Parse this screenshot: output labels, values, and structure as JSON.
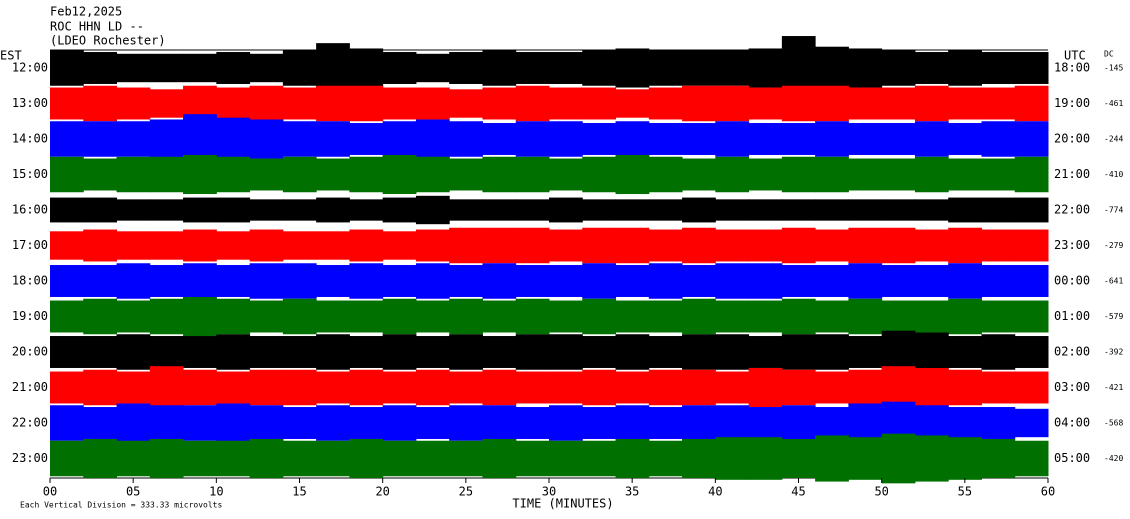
{
  "chart_data": {
    "type": "helicorder",
    "title": "Feb12,2025",
    "subtitle": "ROC HHN LD --",
    "station": "(LDEO Rochester)",
    "left_axis_label": "EST",
    "right_axis_label": "UTC",
    "dc_label": "DC",
    "x_label": "TIME (MINUTES)",
    "scale_note": "Each Vertical Division =  333.33 microvolts",
    "xlim": [
      0,
      60
    ],
    "xticks": [
      {
        "value": 0,
        "label": "00"
      },
      {
        "value": 5,
        "label": "05"
      },
      10,
      15,
      20,
      25,
      30,
      35,
      40,
      45,
      50,
      55,
      60
    ],
    "series": [
      {
        "name": "12:00",
        "utc": "18:00",
        "dc": -145,
        "color": "#000000",
        "values": [
          0.5,
          0.45,
          0.4,
          0.4,
          0.4,
          0.45,
          0.4,
          0.5,
          0.7,
          0.55,
          0.45,
          0.4,
          0.45,
          0.5,
          0.45,
          0.45,
          0.5,
          0.55,
          0.5,
          0.5,
          0.5,
          0.55,
          0.9,
          0.6,
          0.55,
          0.5,
          0.45,
          0.5,
          0.45,
          0.45
        ]
      },
      {
        "name": "13:00",
        "utc": "19:00",
        "dc": -461,
        "color": "#ff0000",
        "values": [
          0.45,
          0.5,
          0.45,
          0.4,
          0.5,
          0.45,
          0.5,
          0.45,
          0.5,
          0.5,
          0.45,
          0.45,
          0.4,
          0.45,
          0.5,
          0.45,
          0.45,
          0.4,
          0.45,
          0.5,
          0.5,
          0.45,
          0.5,
          0.5,
          0.45,
          0.45,
          0.5,
          0.45,
          0.45,
          0.5
        ]
      },
      {
        "name": "14:00",
        "utc": "20:00",
        "dc": -244,
        "color": "#0000ff",
        "values": [
          0.5,
          0.5,
          0.5,
          0.55,
          0.7,
          0.6,
          0.55,
          0.5,
          0.5,
          0.45,
          0.5,
          0.55,
          0.5,
          0.45,
          0.5,
          0.5,
          0.45,
          0.5,
          0.45,
          0.45,
          0.5,
          0.45,
          0.45,
          0.5,
          0.45,
          0.45,
          0.5,
          0.45,
          0.5,
          0.5
        ]
      },
      {
        "name": "15:00",
        "utc": "21:00",
        "dc": -410,
        "color": "#007000",
        "values": [
          0.5,
          0.45,
          0.5,
          0.5,
          0.55,
          0.5,
          0.45,
          0.5,
          0.45,
          0.5,
          0.55,
          0.5,
          0.45,
          0.5,
          0.5,
          0.45,
          0.5,
          0.55,
          0.5,
          0.45,
          0.5,
          0.45,
          0.5,
          0.5,
          0.45,
          0.45,
          0.5,
          0.45,
          0.45,
          0.5
        ]
      },
      {
        "name": "16:00",
        "utc": "22:00",
        "dc": -774,
        "color": "#000000",
        "values": [
          0.35,
          0.35,
          0.3,
          0.3,
          0.35,
          0.35,
          0.3,
          0.3,
          0.35,
          0.3,
          0.35,
          0.4,
          0.3,
          0.3,
          0.3,
          0.35,
          0.3,
          0.3,
          0.3,
          0.35,
          0.3,
          0.3,
          0.3,
          0.3,
          0.3,
          0.3,
          0.3,
          0.35,
          0.35,
          0.35
        ]
      },
      {
        "name": "17:00",
        "utc": "23:00",
        "dc": -279,
        "color": "#ff0000",
        "values": [
          0.4,
          0.45,
          0.4,
          0.4,
          0.45,
          0.4,
          0.45,
          0.4,
          0.4,
          0.45,
          0.4,
          0.45,
          0.5,
          0.5,
          0.5,
          0.45,
          0.5,
          0.5,
          0.45,
          0.5,
          0.45,
          0.45,
          0.5,
          0.45,
          0.5,
          0.5,
          0.45,
          0.5,
          0.45,
          0.45
        ]
      },
      {
        "name": "18:00",
        "utc": "00:00",
        "dc": -641,
        "color": "#0000ff",
        "values": [
          0.45,
          0.45,
          0.5,
          0.45,
          0.5,
          0.45,
          0.5,
          0.5,
          0.45,
          0.5,
          0.45,
          0.5,
          0.45,
          0.5,
          0.45,
          0.45,
          0.5,
          0.45,
          0.5,
          0.45,
          0.5,
          0.5,
          0.45,
          0.45,
          0.5,
          0.45,
          0.45,
          0.5,
          0.45,
          0.45
        ]
      },
      {
        "name": "19:00",
        "utc": "01:00",
        "dc": -579,
        "color": "#007000",
        "values": [
          0.45,
          0.5,
          0.45,
          0.5,
          0.55,
          0.5,
          0.45,
          0.5,
          0.45,
          0.45,
          0.5,
          0.45,
          0.5,
          0.45,
          0.5,
          0.45,
          0.5,
          0.45,
          0.45,
          0.5,
          0.45,
          0.45,
          0.5,
          0.45,
          0.5,
          0.45,
          0.45,
          0.5,
          0.45,
          0.45
        ]
      },
      {
        "name": "20:00",
        "utc": "02:00",
        "dc": -392,
        "color": "#000000",
        "values": [
          0.45,
          0.45,
          0.5,
          0.45,
          0.45,
          0.5,
          0.45,
          0.45,
          0.5,
          0.45,
          0.5,
          0.45,
          0.5,
          0.45,
          0.5,
          0.5,
          0.45,
          0.5,
          0.45,
          0.5,
          0.5,
          0.45,
          0.5,
          0.5,
          0.45,
          0.6,
          0.55,
          0.45,
          0.5,
          0.45
        ]
      },
      {
        "name": "21:00",
        "utc": "03:00",
        "dc": -421,
        "color": "#ff0000",
        "values": [
          0.45,
          0.5,
          0.45,
          0.6,
          0.5,
          0.45,
          0.5,
          0.5,
          0.45,
          0.5,
          0.45,
          0.5,
          0.45,
          0.5,
          0.45,
          0.45,
          0.5,
          0.45,
          0.5,
          0.5,
          0.45,
          0.55,
          0.5,
          0.45,
          0.5,
          0.6,
          0.55,
          0.5,
          0.45,
          0.45
        ]
      },
      {
        "name": "22:00",
        "utc": "04:00",
        "dc": -568,
        "color": "#0000ff",
        "values": [
          0.5,
          0.45,
          0.55,
          0.5,
          0.5,
          0.55,
          0.5,
          0.45,
          0.5,
          0.45,
          0.5,
          0.45,
          0.5,
          0.5,
          0.45,
          0.5,
          0.45,
          0.5,
          0.45,
          0.5,
          0.5,
          0.45,
          0.5,
          0.45,
          0.55,
          0.6,
          0.5,
          0.45,
          0.45,
          0.4
        ]
      },
      {
        "name": "23:00",
        "utc": "05:00",
        "dc": -420,
        "color": "#007000",
        "values": [
          0.5,
          0.55,
          0.5,
          0.55,
          0.5,
          0.5,
          0.55,
          0.5,
          0.5,
          0.55,
          0.5,
          0.5,
          0.5,
          0.55,
          0.5,
          0.5,
          0.5,
          0.55,
          0.5,
          0.55,
          0.6,
          0.6,
          0.55,
          0.65,
          0.6,
          0.7,
          0.65,
          0.6,
          0.55,
          0.5
        ]
      }
    ]
  }
}
